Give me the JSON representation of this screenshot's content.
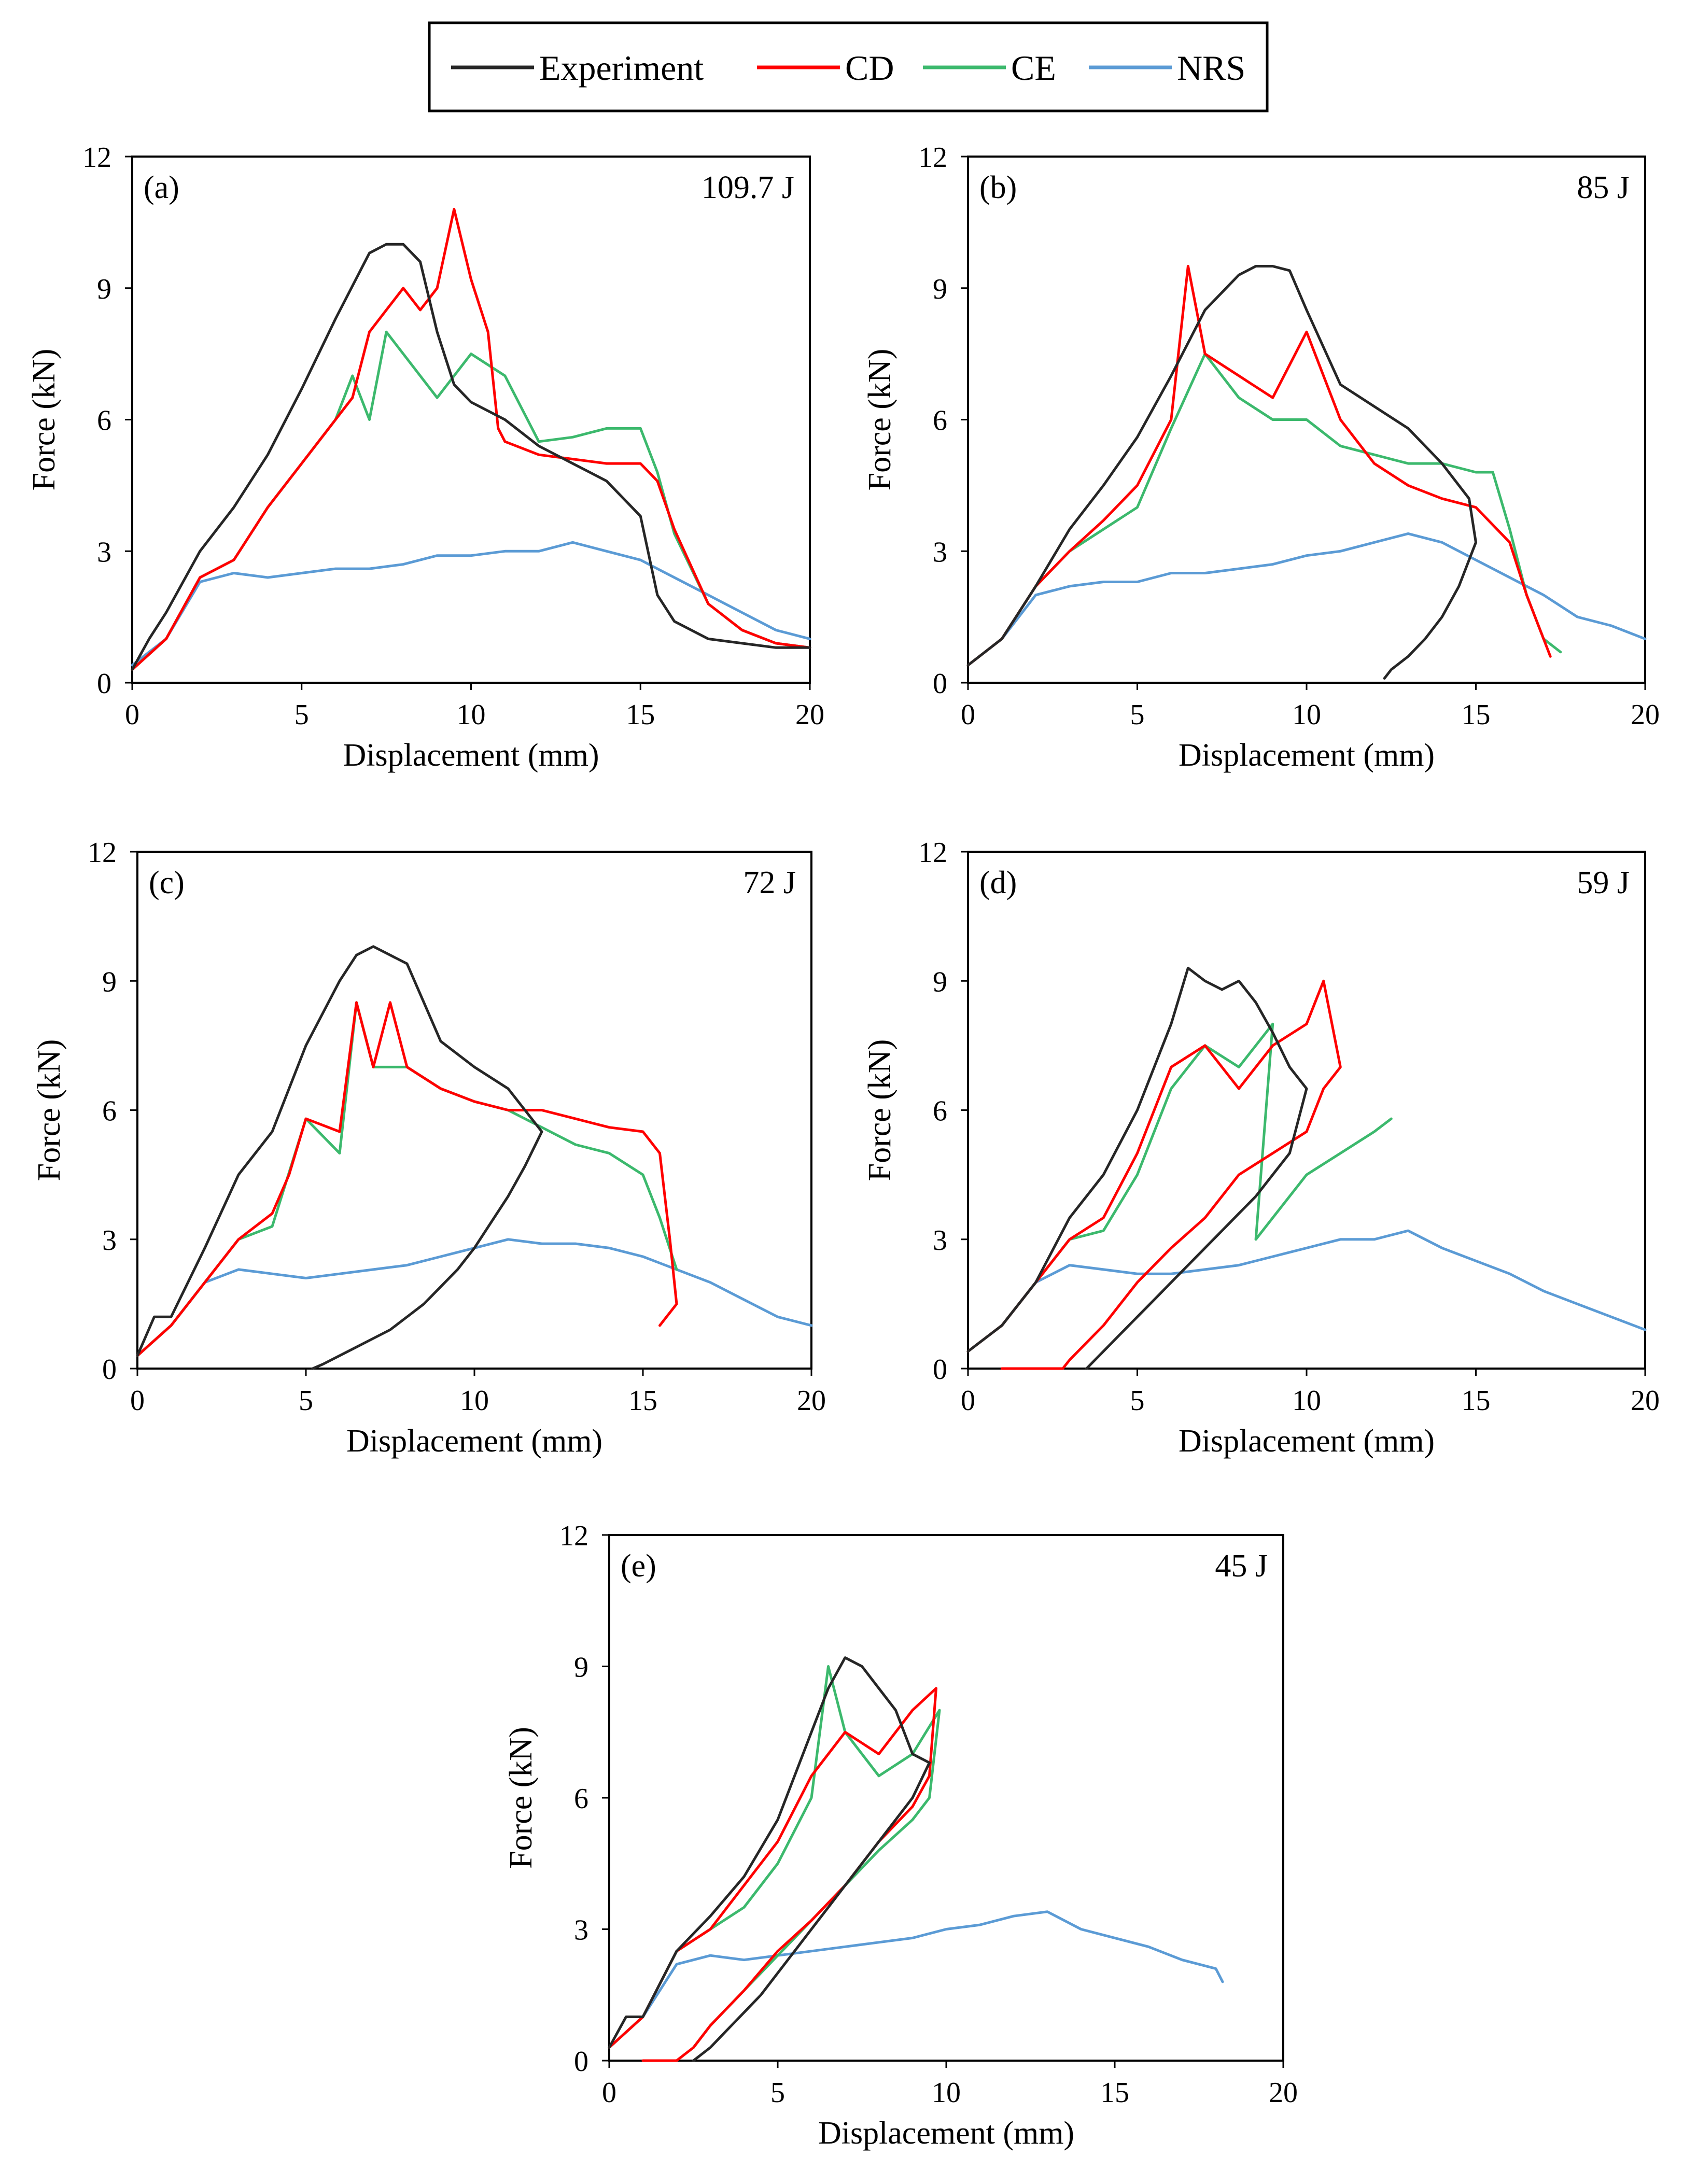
{
  "legend": [
    {
      "name": "Experiment",
      "color": "#262626"
    },
    {
      "name": "CD",
      "color": "#ff0000"
    },
    {
      "name": "CE",
      "color": "#3cb96d"
    },
    {
      "name": "NRS",
      "color": "#5b9bd5"
    }
  ],
  "chart_data": [
    {
      "type": "line",
      "panel": "(a)",
      "energy": "109.7 J",
      "xlabel": "Displacement (mm)",
      "ylabel": "Force (kN)",
      "xlim": [
        0,
        20
      ],
      "ylim": [
        0,
        12
      ],
      "xticks": [
        "0",
        "5",
        "10",
        "15",
        "20"
      ],
      "yticks": [
        "0",
        "3",
        "6",
        "9",
        "12"
      ],
      "series": [
        {
          "name": "Experiment",
          "x": [
            0,
            0.5,
            1,
            2,
            3,
            4,
            5,
            6,
            7,
            7.5,
            8,
            8.5,
            9,
            9.5,
            10,
            11,
            12,
            13,
            14,
            15,
            15.5,
            16,
            17,
            18,
            19,
            20
          ],
          "y": [
            0.3,
            1.0,
            1.6,
            3.0,
            4.0,
            5.2,
            6.7,
            8.3,
            9.8,
            10.0,
            10.0,
            9.6,
            8.0,
            6.8,
            6.4,
            6.0,
            5.4,
            5.0,
            4.6,
            3.8,
            2.0,
            1.4,
            1.0,
            0.9,
            0.8,
            0.8
          ]
        },
        {
          "name": "CD",
          "x": [
            0,
            1,
            2,
            3,
            4,
            5,
            6,
            6.5,
            7,
            7.5,
            8,
            8.5,
            9,
            9.5,
            10,
            10.5,
            10.8,
            11,
            12,
            13,
            14,
            15,
            15.5,
            16,
            17,
            18,
            19,
            20
          ],
          "y": [
            0.3,
            1.0,
            2.4,
            2.8,
            4.0,
            5.0,
            6.0,
            6.5,
            8.0,
            8.5,
            9.0,
            8.5,
            9.0,
            10.8,
            9.2,
            8.0,
            5.8,
            5.5,
            5.2,
            5.1,
            5.0,
            5.0,
            4.6,
            3.5,
            1.8,
            1.2,
            0.9,
            0.8
          ]
        },
        {
          "name": "CE",
          "x": [
            0,
            1,
            2,
            3,
            4,
            5,
            6,
            6.5,
            7,
            7.5,
            8,
            9,
            10,
            11,
            12,
            13,
            14,
            15,
            15.5,
            16,
            17,
            18,
            19,
            20
          ],
          "y": [
            0.3,
            1.0,
            2.4,
            2.8,
            4.0,
            5.0,
            6.0,
            7.0,
            6.0,
            8.0,
            7.5,
            6.5,
            7.5,
            7.0,
            5.5,
            5.6,
            5.8,
            5.8,
            4.8,
            3.4,
            1.8,
            1.2,
            0.9,
            0.8
          ]
        },
        {
          "name": "NRS",
          "x": [
            0,
            1,
            2,
            3,
            4,
            5,
            6,
            7,
            8,
            9,
            10,
            11,
            12,
            13,
            14,
            15,
            16,
            17,
            18,
            19,
            20
          ],
          "y": [
            0.4,
            1.0,
            2.3,
            2.5,
            2.4,
            2.5,
            2.6,
            2.6,
            2.7,
            2.9,
            2.9,
            3.0,
            3.0,
            3.2,
            3.0,
            2.8,
            2.4,
            2.0,
            1.6,
            1.2,
            1.0
          ]
        }
      ]
    },
    {
      "type": "line",
      "panel": "(b)",
      "energy": "85 J",
      "xlabel": "Displacement (mm)",
      "ylabel": "Force (kN)",
      "xlim": [
        0,
        20
      ],
      "ylim": [
        0,
        12
      ],
      "xticks": [
        "0",
        "5",
        "10",
        "15",
        "20"
      ],
      "yticks": [
        "0",
        "3",
        "6",
        "9",
        "12"
      ],
      "series": [
        {
          "name": "Experiment",
          "x": [
            0,
            1,
            2,
            3,
            4,
            5,
            6,
            7,
            8,
            8.5,
            9,
            9.5,
            10,
            11,
            12,
            13,
            14,
            14.8,
            15,
            14.5,
            14,
            13.5,
            13,
            12.5,
            12.3
          ],
          "y": [
            0.4,
            1.0,
            2.2,
            3.5,
            4.5,
            5.6,
            7.0,
            8.5,
            9.3,
            9.5,
            9.5,
            9.4,
            8.5,
            6.8,
            6.3,
            5.8,
            5.0,
            4.2,
            3.2,
            2.2,
            1.5,
            1.0,
            0.6,
            0.3,
            0.1
          ]
        },
        {
          "name": "CD",
          "x": [
            0,
            1,
            2,
            3,
            4,
            5,
            6,
            6.5,
            7,
            8,
            9,
            10,
            11,
            12,
            13,
            14,
            15,
            16,
            16.5,
            17,
            17.2
          ],
          "y": [
            0.4,
            1.0,
            2.2,
            3.0,
            3.7,
            4.5,
            6.0,
            9.5,
            7.5,
            7.0,
            6.5,
            8.0,
            6.0,
            5.0,
            4.5,
            4.2,
            4.0,
            3.2,
            2.0,
            1.0,
            0.6
          ]
        },
        {
          "name": "CE",
          "x": [
            0,
            1,
            2,
            3,
            4,
            5,
            6,
            7,
            8,
            9,
            10,
            11,
            12,
            13,
            14,
            15,
            15.5,
            16,
            16.5,
            17,
            17.5
          ],
          "y": [
            0.4,
            1.0,
            2.2,
            3.0,
            3.5,
            4.0,
            5.8,
            7.5,
            6.5,
            6.0,
            6.0,
            5.4,
            5.2,
            5.0,
            5.0,
            4.8,
            4.8,
            3.5,
            2.0,
            1.0,
            0.7
          ]
        },
        {
          "name": "NRS",
          "x": [
            0,
            1,
            2,
            3,
            4,
            5,
            6,
            7,
            8,
            9,
            10,
            11,
            12,
            13,
            14,
            15,
            16,
            17,
            18,
            19,
            20
          ],
          "y": [
            0.4,
            1.0,
            2.0,
            2.2,
            2.3,
            2.3,
            2.5,
            2.5,
            2.6,
            2.7,
            2.9,
            3.0,
            3.2,
            3.4,
            3.2,
            2.8,
            2.4,
            2.0,
            1.5,
            1.3,
            1.0
          ]
        }
      ]
    },
    {
      "type": "line",
      "panel": "(c)",
      "energy": "72 J",
      "xlabel": "Displacement (mm)",
      "ylabel": "Force (kN)",
      "xlim": [
        0,
        20
      ],
      "ylim": [
        0,
        12
      ],
      "xticks": [
        "0",
        "5",
        "10",
        "15",
        "20"
      ],
      "yticks": [
        "0",
        "3",
        "6",
        "9",
        "12"
      ],
      "series": [
        {
          "name": "Experiment",
          "x": [
            0,
            0.5,
            1,
            2,
            3,
            4,
            5,
            6,
            6.5,
            7,
            7.5,
            8,
            8.5,
            9,
            10,
            11,
            12,
            11.5,
            11,
            10.5,
            10,
            9.5,
            9,
            8.5,
            8,
            7.5,
            7,
            6.5,
            6,
            5.5,
            5.2
          ],
          "y": [
            0.3,
            1.2,
            1.2,
            2.8,
            4.5,
            5.5,
            7.5,
            9.0,
            9.6,
            9.8,
            9.6,
            9.4,
            8.5,
            7.6,
            7.0,
            6.5,
            5.5,
            4.7,
            4.0,
            3.4,
            2.8,
            2.3,
            1.9,
            1.5,
            1.2,
            0.9,
            0.7,
            0.5,
            0.3,
            0.1,
            0.0
          ]
        },
        {
          "name": "CD",
          "x": [
            0,
            1,
            2,
            3,
            4,
            4.5,
            5,
            6,
            6.5,
            7,
            7.5,
            8,
            9,
            10,
            11,
            12,
            13,
            14,
            15,
            15.5,
            15.8,
            16,
            15.5
          ],
          "y": [
            0.3,
            1.0,
            2.0,
            3.0,
            3.6,
            4.5,
            5.8,
            5.5,
            8.5,
            7.0,
            8.5,
            7.0,
            6.5,
            6.2,
            6.0,
            6.0,
            5.8,
            5.6,
            5.5,
            5.0,
            3.0,
            1.5,
            1.0
          ]
        },
        {
          "name": "CE",
          "x": [
            0,
            1,
            2,
            3,
            4,
            5,
            6,
            6.5,
            7,
            8,
            9,
            10,
            11,
            12,
            13,
            14,
            15,
            15.5,
            16
          ],
          "y": [
            0.3,
            1.0,
            2.0,
            3.0,
            3.3,
            5.8,
            5.0,
            8.5,
            7.0,
            7.0,
            6.5,
            6.2,
            6.0,
            5.6,
            5.2,
            5.0,
            4.5,
            3.5,
            2.3
          ]
        },
        {
          "name": "NRS",
          "x": [
            0,
            1,
            2,
            3,
            4,
            5,
            6,
            7,
            8,
            9,
            10,
            11,
            12,
            13,
            14,
            15,
            16,
            17,
            18,
            19,
            20
          ],
          "y": [
            0.3,
            1.0,
            2.0,
            2.3,
            2.2,
            2.1,
            2.2,
            2.3,
            2.4,
            2.6,
            2.8,
            3.0,
            2.9,
            2.9,
            2.8,
            2.6,
            2.3,
            2.0,
            1.6,
            1.2,
            1.0
          ]
        }
      ]
    },
    {
      "type": "line",
      "panel": "(d)",
      "energy": "59 J",
      "xlabel": "Displacement (mm)",
      "ylabel": "Force (kN)",
      "xlim": [
        0,
        20
      ],
      "ylim": [
        0,
        12
      ],
      "xticks": [
        "0",
        "5",
        "10",
        "15",
        "20"
      ],
      "yticks": [
        "0",
        "3",
        "6",
        "9",
        "12"
      ],
      "series": [
        {
          "name": "Experiment",
          "x": [
            0,
            1,
            2,
            3,
            4,
            5,
            6,
            6.5,
            7,
            7.5,
            8,
            8.5,
            9,
            9.5,
            10,
            9.5,
            9,
            8.5,
            8,
            7.5,
            7,
            6.5,
            6,
            5.5,
            5,
            4.5,
            4,
            3.5
          ],
          "y": [
            0.4,
            1.0,
            2.0,
            3.5,
            4.5,
            6.0,
            8.0,
            9.3,
            9.0,
            8.8,
            9.0,
            8.5,
            7.8,
            7.0,
            6.5,
            5.0,
            4.5,
            4.0,
            3.6,
            3.2,
            2.8,
            2.4,
            2.0,
            1.6,
            1.2,
            0.8,
            0.4,
            0.0
          ]
        },
        {
          "name": "CD",
          "x": [
            0,
            1,
            2,
            3,
            4,
            5,
            6,
            7,
            8,
            9,
            10,
            10.5,
            11,
            10.5,
            10,
            9,
            8,
            7,
            6,
            5,
            4,
            3,
            2.8,
            2,
            1
          ],
          "y": [
            0.4,
            1.0,
            2.0,
            3.0,
            3.5,
            5.0,
            7.0,
            7.5,
            6.5,
            7.5,
            8.0,
            9.0,
            7.0,
            6.5,
            5.5,
            5.0,
            4.5,
            3.5,
            2.8,
            2.0,
            1.0,
            0.2,
            0.0,
            0.0,
            0.0
          ]
        },
        {
          "name": "CE",
          "x": [
            0,
            1,
            2,
            3,
            4,
            5,
            6,
            7,
            8,
            9,
            8.5,
            9,
            10,
            11,
            12,
            12.5
          ],
          "y": [
            0.4,
            1.0,
            2.0,
            3.0,
            3.2,
            4.5,
            6.5,
            7.5,
            7.0,
            8.0,
            3.0,
            3.5,
            4.5,
            5.0,
            5.5,
            5.8
          ]
        },
        {
          "name": "NRS",
          "x": [
            0,
            1,
            2,
            3,
            4,
            5,
            6,
            7,
            8,
            9,
            10,
            11,
            12,
            13,
            14,
            15,
            16,
            17,
            18,
            19,
            20
          ],
          "y": [
            0.4,
            1.0,
            2.0,
            2.4,
            2.3,
            2.2,
            2.2,
            2.3,
            2.4,
            2.6,
            2.8,
            3.0,
            3.0,
            3.2,
            2.8,
            2.5,
            2.2,
            1.8,
            1.5,
            1.2,
            0.9
          ]
        }
      ]
    },
    {
      "type": "line",
      "panel": "(e)",
      "energy": "45 J",
      "xlabel": "Displacement (mm)",
      "ylabel": "Force (kN)",
      "xlim": [
        0,
        20
      ],
      "ylim": [
        0,
        12
      ],
      "xticks": [
        "0",
        "5",
        "10",
        "15",
        "20"
      ],
      "yticks": [
        "0",
        "3",
        "6",
        "9",
        "12"
      ],
      "series": [
        {
          "name": "Experiment",
          "x": [
            0,
            0.5,
            1,
            2,
            3,
            4,
            5,
            6,
            6.5,
            7,
            7.5,
            8,
            8.5,
            9,
            9.5,
            9,
            8.5,
            8,
            7.5,
            7,
            6.5,
            6,
            5.5,
            5,
            4.5,
            4,
            3.5,
            3,
            2.5
          ],
          "y": [
            0.3,
            1.0,
            1.0,
            2.5,
            3.3,
            4.2,
            5.5,
            7.5,
            8.5,
            9.2,
            9.0,
            8.5,
            8.0,
            7.0,
            6.8,
            6.0,
            5.5,
            5.0,
            4.5,
            4.0,
            3.5,
            3.0,
            2.5,
            2.0,
            1.5,
            1.1,
            0.7,
            0.3,
            0.0
          ]
        },
        {
          "name": "CD",
          "x": [
            0,
            1,
            2,
            3,
            4,
            5,
            6,
            7,
            8,
            9,
            9.7,
            9.5,
            9,
            8,
            7,
            6,
            5,
            4,
            3,
            2.5,
            2,
            1
          ],
          "y": [
            0.3,
            1.0,
            2.5,
            3.0,
            4.0,
            5.0,
            6.5,
            7.5,
            7.0,
            8.0,
            8.5,
            6.5,
            5.8,
            5.0,
            4.0,
            3.2,
            2.5,
            1.6,
            0.8,
            0.3,
            0.0,
            0.0
          ]
        },
        {
          "name": "CE",
          "x": [
            0,
            1,
            2,
            3,
            4,
            5,
            6,
            6.5,
            7,
            8,
            9,
            9.8,
            9.5,
            9,
            8,
            7,
            6,
            5,
            4,
            3,
            2.5
          ],
          "y": [
            0.3,
            1.0,
            2.5,
            3.0,
            3.5,
            4.5,
            6.0,
            9.0,
            7.5,
            6.5,
            7.0,
            8.0,
            6.0,
            5.5,
            4.8,
            4.0,
            3.2,
            2.4,
            1.6,
            0.8,
            0.3
          ]
        },
        {
          "name": "NRS",
          "x": [
            0,
            1,
            2,
            3,
            4,
            5,
            6,
            7,
            8,
            9,
            10,
            11,
            12,
            13,
            14,
            15,
            16,
            17,
            18,
            18.2
          ],
          "y": [
            0.3,
            1.0,
            2.2,
            2.4,
            2.3,
            2.4,
            2.5,
            2.6,
            2.7,
            2.8,
            3.0,
            3.1,
            3.3,
            3.4,
            3.0,
            2.8,
            2.6,
            2.3,
            2.1,
            1.8
          ]
        }
      ]
    }
  ]
}
